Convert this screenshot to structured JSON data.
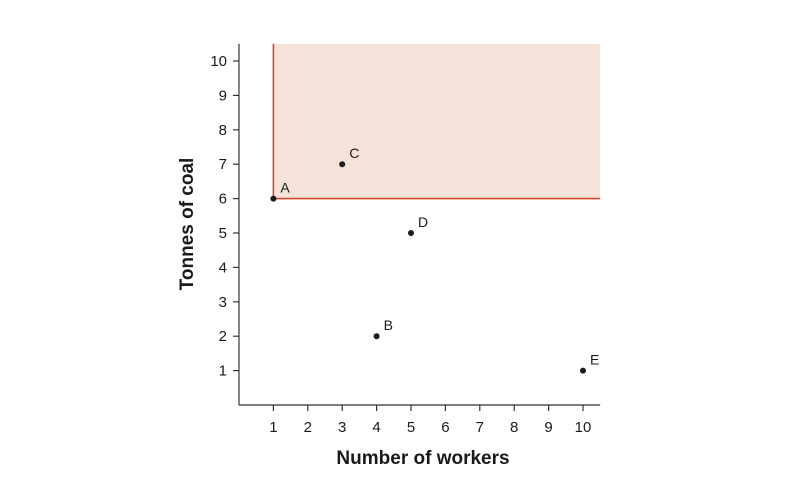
{
  "chart_data": {
    "type": "scatter",
    "xlabel": "Number of workers",
    "ylabel": "Tonnes of coal",
    "xlim": [
      0,
      10.5
    ],
    "ylim": [
      0,
      10.5
    ],
    "x_ticks": [
      1,
      2,
      3,
      4,
      5,
      6,
      7,
      8,
      9,
      10
    ],
    "y_ticks": [
      1,
      2,
      3,
      4,
      5,
      6,
      7,
      8,
      9,
      10
    ],
    "grid": false,
    "points": [
      {
        "label": "A",
        "x": 1,
        "y": 6
      },
      {
        "label": "B",
        "x": 4,
        "y": 2
      },
      {
        "label": "C",
        "x": 3,
        "y": 7
      },
      {
        "label": "D",
        "x": 5,
        "y": 5
      },
      {
        "label": "E",
        "x": 10,
        "y": 1
      }
    ],
    "shaded_region": {
      "x_min": 1,
      "y_min": 6
    },
    "colors": {
      "region_fill": "#f5e3da",
      "region_line": "#d9472b",
      "axis": "#333333",
      "point": "#1a1a1a"
    }
  }
}
